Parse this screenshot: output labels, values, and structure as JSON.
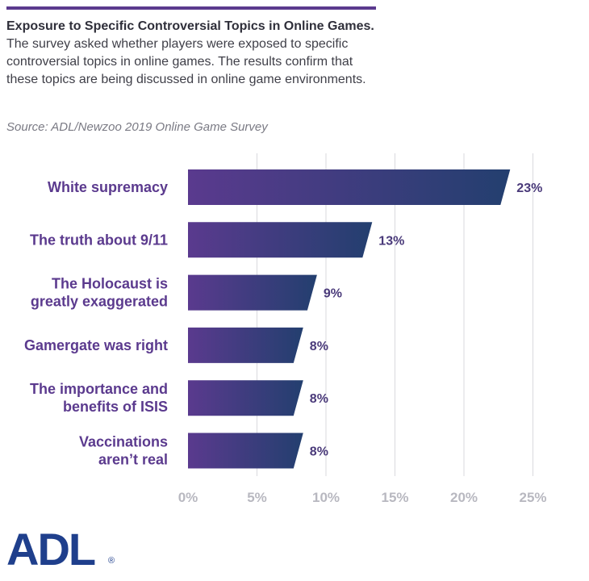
{
  "header": {
    "title": "Exposure to Specific Controversial Topics in Online Games.",
    "description": " The survey asked whether players were exposed to specific controversial topics in online games. The results confirm that these topics are being discussed in online game environments.",
    "source": "Source: ADL/Newzoo 2019 Online Game Survey"
  },
  "logo": {
    "text": "ADL",
    "registered": "®"
  },
  "colors": {
    "bar_start": "#5a3a8e",
    "bar_end": "#233f6f",
    "label": "#5b3a8e",
    "grid": "#d9d9de"
  },
  "chart_data": {
    "type": "bar",
    "orientation": "horizontal",
    "categories": [
      [
        "White supremacy"
      ],
      [
        "The truth about 9/11"
      ],
      [
        "The Holocaust is",
        "greatly exaggerated"
      ],
      [
        "Gamergate was right"
      ],
      [
        "The importance and",
        "benefits of ISIS"
      ],
      [
        "Vaccinations",
        "aren’t real"
      ]
    ],
    "values": [
      23,
      13,
      9,
      8,
      8,
      8
    ],
    "value_labels": [
      "23%",
      "13%",
      "9%",
      "8%",
      "8%",
      "8%"
    ],
    "xlim": [
      0,
      25
    ],
    "xticks": [
      0,
      5,
      10,
      15,
      20,
      25
    ],
    "xtick_labels": [
      "0%",
      "5%",
      "10%",
      "15%",
      "20%",
      "25%"
    ],
    "grid": true
  }
}
